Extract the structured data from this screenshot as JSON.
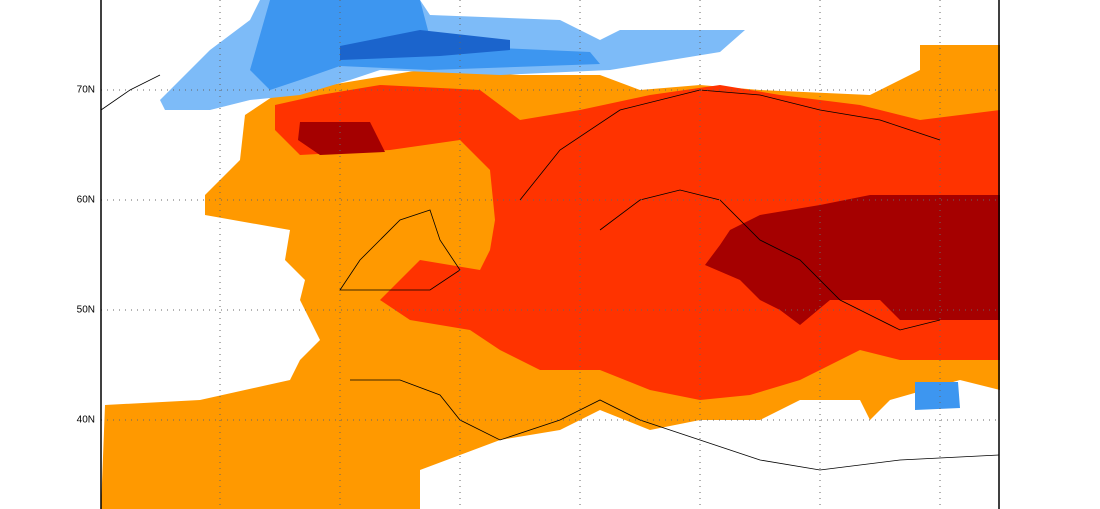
{
  "map": {
    "lat_labels": [
      "70N",
      "60N",
      "50N",
      "40N"
    ]
  }
}
